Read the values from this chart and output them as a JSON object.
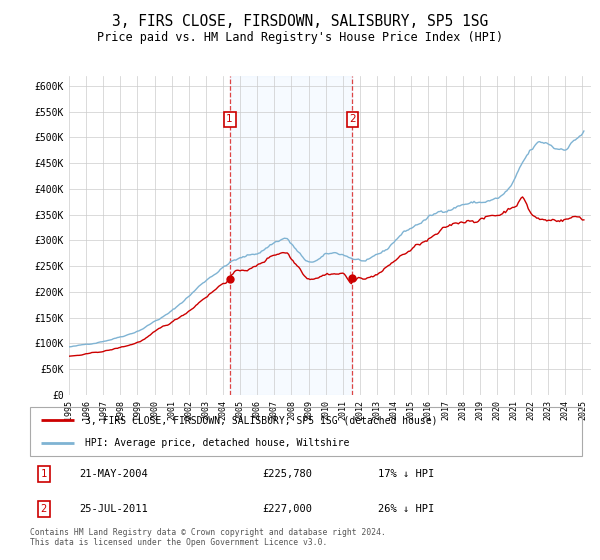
{
  "title": "3, FIRS CLOSE, FIRSDOWN, SALISBURY, SP5 1SG",
  "subtitle": "Price paid vs. HM Land Registry's House Price Index (HPI)",
  "title_fontsize": 10.5,
  "subtitle_fontsize": 8.5,
  "ylim": [
    0,
    620000
  ],
  "yticks": [
    0,
    50000,
    100000,
    150000,
    200000,
    250000,
    300000,
    350000,
    400000,
    450000,
    500000,
    550000,
    600000
  ],
  "ytick_labels": [
    "£0",
    "£50K",
    "£100K",
    "£150K",
    "£200K",
    "£250K",
    "£300K",
    "£350K",
    "£400K",
    "£450K",
    "£500K",
    "£550K",
    "£600K"
  ],
  "xlim_start": 1995.0,
  "xlim_end": 2025.5,
  "sale1_x": 2004.385,
  "sale1_y": 225780,
  "sale1_label": "21-MAY-2004",
  "sale1_price": "£225,780",
  "sale1_hpi": "17% ↓ HPI",
  "sale2_x": 2011.56,
  "sale2_y": 227000,
  "sale2_label": "25-JUL-2011",
  "sale2_price": "£227,000",
  "sale2_hpi": "26% ↓ HPI",
  "property_color": "#cc0000",
  "hpi_color": "#7fb3d3",
  "shading_color": "#ddeeff",
  "legend_property": "3, FIRS CLOSE, FIRSDOWN, SALISBURY, SP5 1SG (detached house)",
  "legend_hpi": "HPI: Average price, detached house, Wiltshire",
  "footnote": "Contains HM Land Registry data © Crown copyright and database right 2024.\nThis data is licensed under the Open Government Licence v3.0."
}
